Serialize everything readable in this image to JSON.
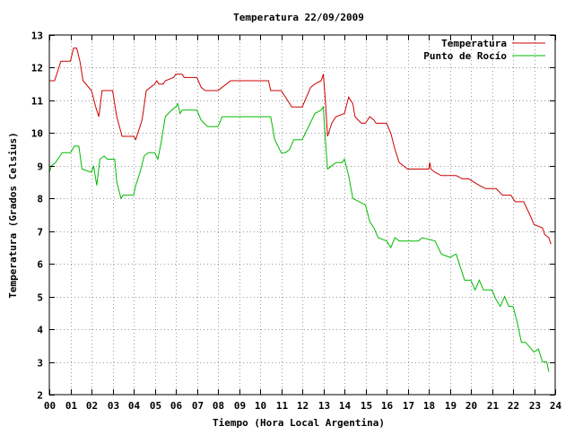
{
  "chart_data": {
    "type": "line",
    "title": "Temperatura 22/09/2009",
    "xlabel": "Tiempo (Hora Local Argentina)",
    "ylabel": "Temperatura (Grados Celsius)",
    "xlim": [
      0,
      24
    ],
    "ylim": [
      2,
      13
    ],
    "x_ticks": [
      "00",
      "01",
      "02",
      "03",
      "04",
      "05",
      "06",
      "07",
      "08",
      "09",
      "10",
      "11",
      "12",
      "13",
      "14",
      "15",
      "16",
      "17",
      "18",
      "19",
      "20",
      "21",
      "22",
      "23",
      "24"
    ],
    "y_ticks": [
      "2",
      "3",
      "4",
      "5",
      "6",
      "7",
      "8",
      "9",
      "10",
      "11",
      "12",
      "13"
    ],
    "grid": true,
    "legend_position": "top-right",
    "colors": {
      "temperatura": "#cc0000",
      "punto_de_rocio": "#00bb00",
      "grid": "#999999",
      "axis": "#000000"
    },
    "series": [
      {
        "name": "Temperatura",
        "points": [
          [
            0.0,
            11.6
          ],
          [
            0.25,
            11.6
          ],
          [
            0.4,
            11.9
          ],
          [
            0.55,
            12.2
          ],
          [
            1.0,
            12.2
          ],
          [
            1.15,
            12.6
          ],
          [
            1.3,
            12.6
          ],
          [
            1.45,
            12.2
          ],
          [
            1.6,
            11.6
          ],
          [
            2.0,
            11.3
          ],
          [
            2.2,
            10.8
          ],
          [
            2.35,
            10.5
          ],
          [
            2.5,
            11.3
          ],
          [
            3.0,
            11.3
          ],
          [
            3.2,
            10.5
          ],
          [
            3.45,
            9.9
          ],
          [
            4.0,
            9.9
          ],
          [
            4.1,
            9.8
          ],
          [
            4.25,
            10.1
          ],
          [
            4.4,
            10.4
          ],
          [
            4.6,
            11.3
          ],
          [
            4.8,
            11.4
          ],
          [
            5.0,
            11.5
          ],
          [
            5.1,
            11.6
          ],
          [
            5.2,
            11.5
          ],
          [
            5.4,
            11.5
          ],
          [
            5.5,
            11.6
          ],
          [
            5.9,
            11.7
          ],
          [
            6.0,
            11.8
          ],
          [
            6.3,
            11.8
          ],
          [
            6.4,
            11.7
          ],
          [
            7.0,
            11.7
          ],
          [
            7.2,
            11.4
          ],
          [
            7.4,
            11.3
          ],
          [
            8.0,
            11.3
          ],
          [
            8.2,
            11.4
          ],
          [
            8.4,
            11.5
          ],
          [
            8.6,
            11.6
          ],
          [
            10.4,
            11.6
          ],
          [
            10.5,
            11.3
          ],
          [
            11.0,
            11.3
          ],
          [
            11.3,
            11.0
          ],
          [
            11.5,
            10.8
          ],
          [
            12.0,
            10.8
          ],
          [
            12.2,
            11.1
          ],
          [
            12.4,
            11.4
          ],
          [
            12.6,
            11.5
          ],
          [
            12.9,
            11.6
          ],
          [
            13.0,
            11.8
          ],
          [
            13.1,
            11.0
          ],
          [
            13.2,
            9.9
          ],
          [
            13.4,
            10.3
          ],
          [
            13.6,
            10.5
          ],
          [
            14.0,
            10.6
          ],
          [
            14.2,
            11.1
          ],
          [
            14.4,
            10.9
          ],
          [
            14.5,
            10.5
          ],
          [
            14.8,
            10.3
          ],
          [
            15.0,
            10.3
          ],
          [
            15.2,
            10.5
          ],
          [
            15.4,
            10.4
          ],
          [
            15.5,
            10.3
          ],
          [
            16.0,
            10.3
          ],
          [
            16.2,
            10.0
          ],
          [
            16.4,
            9.5
          ],
          [
            16.6,
            9.1
          ],
          [
            17.0,
            8.9
          ],
          [
            18.0,
            8.9
          ],
          [
            18.05,
            9.1
          ],
          [
            18.1,
            8.9
          ],
          [
            18.3,
            8.8
          ],
          [
            18.6,
            8.7
          ],
          [
            19.0,
            8.7
          ],
          [
            19.3,
            8.7
          ],
          [
            19.6,
            8.6
          ],
          [
            19.9,
            8.6
          ],
          [
            20.4,
            8.4
          ],
          [
            20.7,
            8.3
          ],
          [
            21.2,
            8.3
          ],
          [
            21.5,
            8.1
          ],
          [
            21.9,
            8.1
          ],
          [
            22.1,
            7.9
          ],
          [
            22.5,
            7.9
          ],
          [
            22.8,
            7.5
          ],
          [
            23.0,
            7.2
          ],
          [
            23.4,
            7.1
          ],
          [
            23.5,
            6.9
          ],
          [
            23.7,
            6.8
          ],
          [
            23.8,
            6.6
          ]
        ]
      },
      {
        "name": "Punto de Rocío",
        "points": [
          [
            0.0,
            8.8
          ],
          [
            0.1,
            9.0
          ],
          [
            0.3,
            9.1
          ],
          [
            0.5,
            9.3
          ],
          [
            0.6,
            9.4
          ],
          [
            1.0,
            9.4
          ],
          [
            1.2,
            9.6
          ],
          [
            1.4,
            9.6
          ],
          [
            1.55,
            8.9
          ],
          [
            2.0,
            8.8
          ],
          [
            2.1,
            9.0
          ],
          [
            2.25,
            8.4
          ],
          [
            2.4,
            9.2
          ],
          [
            2.6,
            9.3
          ],
          [
            2.75,
            9.2
          ],
          [
            3.1,
            9.2
          ],
          [
            3.2,
            8.5
          ],
          [
            3.4,
            8.0
          ],
          [
            3.5,
            8.1
          ],
          [
            4.0,
            8.1
          ],
          [
            4.1,
            8.4
          ],
          [
            4.3,
            8.8
          ],
          [
            4.5,
            9.3
          ],
          [
            4.7,
            9.4
          ],
          [
            5.0,
            9.4
          ],
          [
            5.15,
            9.2
          ],
          [
            5.3,
            9.7
          ],
          [
            5.5,
            10.5
          ],
          [
            5.8,
            10.7
          ],
          [
            6.0,
            10.8
          ],
          [
            6.1,
            10.9
          ],
          [
            6.2,
            10.6
          ],
          [
            6.3,
            10.7
          ],
          [
            7.0,
            10.7
          ],
          [
            7.2,
            10.4
          ],
          [
            7.5,
            10.2
          ],
          [
            8.0,
            10.2
          ],
          [
            8.2,
            10.5
          ],
          [
            10.5,
            10.5
          ],
          [
            10.7,
            9.8
          ],
          [
            11.0,
            9.4
          ],
          [
            11.2,
            9.4
          ],
          [
            11.4,
            9.5
          ],
          [
            11.6,
            9.8
          ],
          [
            12.0,
            9.8
          ],
          [
            12.3,
            10.2
          ],
          [
            12.6,
            10.6
          ],
          [
            12.9,
            10.7
          ],
          [
            13.0,
            10.8
          ],
          [
            13.1,
            9.8
          ],
          [
            13.2,
            8.9
          ],
          [
            13.4,
            9.0
          ],
          [
            13.6,
            9.1
          ],
          [
            13.9,
            9.1
          ],
          [
            14.0,
            9.2
          ],
          [
            14.2,
            8.7
          ],
          [
            14.4,
            8.0
          ],
          [
            15.0,
            7.8
          ],
          [
            15.2,
            7.3
          ],
          [
            15.4,
            7.1
          ],
          [
            15.6,
            6.8
          ],
          [
            16.0,
            6.7
          ],
          [
            16.2,
            6.5
          ],
          [
            16.4,
            6.8
          ],
          [
            16.6,
            6.7
          ],
          [
            17.5,
            6.7
          ],
          [
            17.7,
            6.8
          ],
          [
            18.3,
            6.7
          ],
          [
            18.6,
            6.3
          ],
          [
            19.0,
            6.2
          ],
          [
            19.3,
            6.3
          ],
          [
            19.5,
            5.9
          ],
          [
            19.7,
            5.5
          ],
          [
            20.0,
            5.5
          ],
          [
            20.2,
            5.2
          ],
          [
            20.4,
            5.5
          ],
          [
            20.6,
            5.2
          ],
          [
            21.0,
            5.2
          ],
          [
            21.2,
            4.9
          ],
          [
            21.4,
            4.7
          ],
          [
            21.6,
            5.0
          ],
          [
            21.8,
            4.7
          ],
          [
            22.0,
            4.7
          ],
          [
            22.2,
            4.2
          ],
          [
            22.4,
            3.6
          ],
          [
            22.6,
            3.6
          ],
          [
            23.0,
            3.3
          ],
          [
            23.2,
            3.4
          ],
          [
            23.4,
            3.0
          ],
          [
            23.6,
            3.0
          ],
          [
            23.7,
            2.7
          ]
        ]
      }
    ]
  }
}
